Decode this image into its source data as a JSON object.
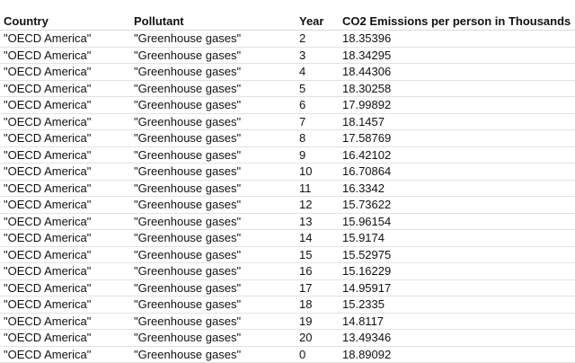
{
  "table": {
    "columns": [
      "Country",
      "Pollutant",
      "Year",
      "CO2 Emissions per person in Thousands"
    ],
    "rows": [
      [
        "\"OECD America\"",
        "\"Greenhouse gases\"",
        "2",
        "18.35396"
      ],
      [
        "\"OECD America\"",
        "\"Greenhouse gases\"",
        "3",
        "18.34295"
      ],
      [
        "\"OECD America\"",
        "\"Greenhouse gases\"",
        "4",
        "18.44306"
      ],
      [
        "\"OECD America\"",
        "\"Greenhouse gases\"",
        "5",
        "18.30258"
      ],
      [
        "\"OECD America\"",
        "\"Greenhouse gases\"",
        "6",
        "17.99892"
      ],
      [
        "\"OECD America\"",
        "\"Greenhouse gases\"",
        "7",
        "18.1457"
      ],
      [
        "\"OECD America\"",
        "\"Greenhouse gases\"",
        "8",
        "17.58769"
      ],
      [
        "\"OECD America\"",
        "\"Greenhouse gases\"",
        "9",
        "16.42102"
      ],
      [
        "\"OECD America\"",
        "\"Greenhouse gases\"",
        "10",
        "16.70864"
      ],
      [
        "\"OECD America\"",
        "\"Greenhouse gases\"",
        "11",
        "16.3342"
      ],
      [
        "\"OECD America\"",
        "\"Greenhouse gases\"",
        "12",
        "15.73622"
      ],
      [
        "\"OECD America\"",
        "\"Greenhouse gases\"",
        "13",
        "15.96154"
      ],
      [
        "\"OECD America\"",
        "\"Greenhouse gases\"",
        "14",
        "15.9174"
      ],
      [
        "\"OECD America\"",
        "\"Greenhouse gases\"",
        "15",
        "15.52975"
      ],
      [
        "\"OECD America\"",
        "\"Greenhouse gases\"",
        "16",
        "15.16229"
      ],
      [
        "\"OECD America\"",
        "\"Greenhouse gases\"",
        "17",
        "14.95917"
      ],
      [
        "\"OECD America\"",
        "\"Greenhouse gases\"",
        "18",
        "15.2335"
      ],
      [
        "\"OECD America\"",
        "\"Greenhouse gases\"",
        "19",
        "14.8117"
      ],
      [
        "\"OECD America\"",
        "\"Greenhouse gases\"",
        "20",
        "13.49346"
      ],
      [
        "\"OECD America\"",
        "\"Greenhouse gases\"",
        "0",
        "18.89092"
      ]
    ]
  }
}
